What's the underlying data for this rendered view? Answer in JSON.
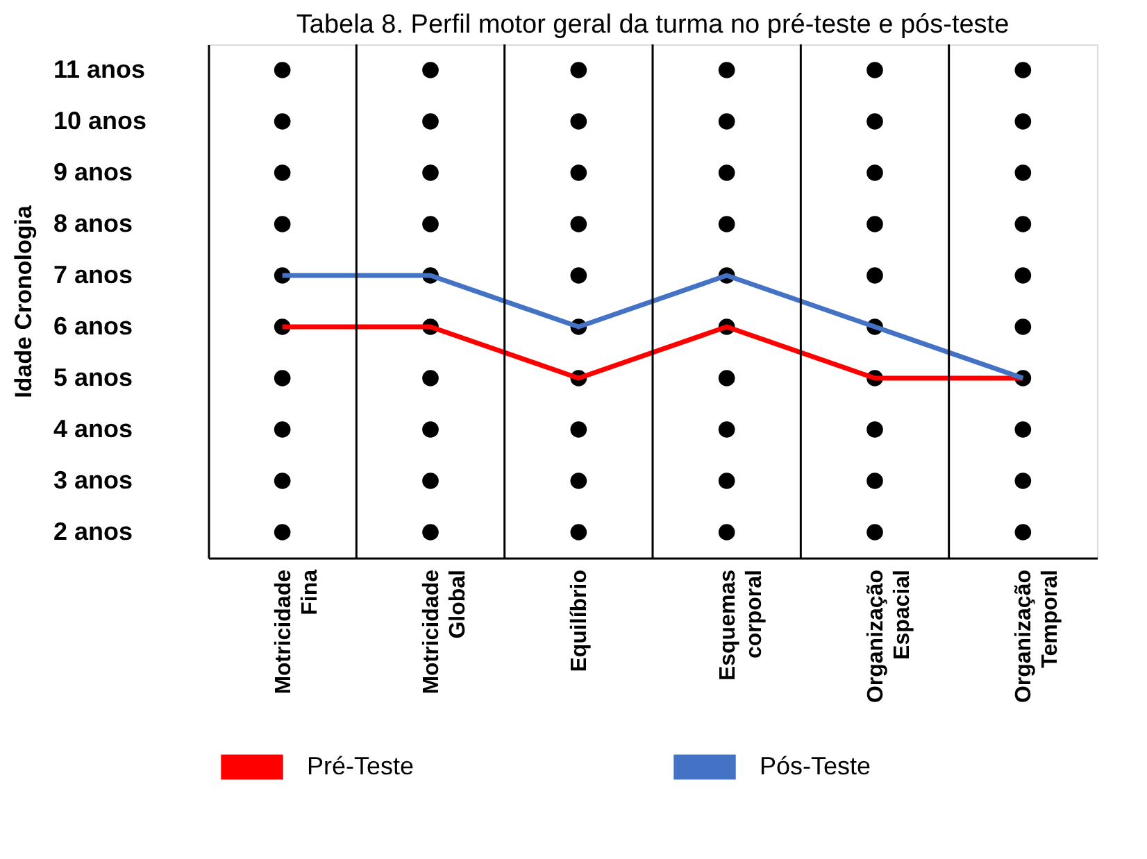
{
  "chart_data": {
    "type": "line",
    "title": "Tabela 8. Perfil motor geral da turma no pré-teste e pós-teste",
    "ylabel": "Idade Cronologia",
    "categories": [
      "Motricidade Fina",
      "Motricidade Global",
      "Equilíbrio",
      "Esquemas corporal",
      "Organização Espacial",
      "Organização Temporal"
    ],
    "series": [
      {
        "name": "Pré-Teste",
        "color": "#ff0000",
        "marker": "none",
        "values": [
          6,
          6,
          5,
          6,
          5,
          5
        ]
      },
      {
        "name": "Pós-Teste",
        "color": "#4472c4",
        "marker": "none",
        "values": [
          7,
          7,
          6,
          7,
          6,
          5
        ]
      },
      {
        "type": "scatter",
        "color": "#000000",
        "marker": "circle",
        "values": [
          2,
          2,
          2,
          2,
          2,
          2
        ]
      },
      {
        "type": "scatter",
        "color": "#000000",
        "marker": "circle",
        "values": [
          3,
          3,
          3,
          3,
          3,
          3
        ]
      },
      {
        "type": "scatter",
        "color": "#000000",
        "marker": "circle",
        "values": [
          4,
          4,
          4,
          4,
          4,
          4
        ]
      },
      {
        "type": "scatter",
        "color": "#000000",
        "marker": "circle",
        "values": [
          5,
          5,
          5,
          5,
          5,
          5
        ]
      },
      {
        "type": "scatter",
        "color": "#000000",
        "marker": "circle",
        "values": [
          6,
          6,
          6,
          6,
          6,
          6
        ]
      },
      {
        "type": "scatter",
        "color": "#000000",
        "marker": "circle",
        "values": [
          7,
          7,
          7,
          7,
          7,
          7
        ]
      },
      {
        "type": "scatter",
        "color": "#000000",
        "marker": "circle",
        "values": [
          8,
          8,
          8,
          8,
          8,
          8
        ]
      },
      {
        "type": "scatter",
        "color": "#000000",
        "marker": "circle",
        "values": [
          9,
          9,
          9,
          9,
          9,
          9
        ]
      },
      {
        "type": "scatter",
        "color": "#000000",
        "marker": "circle",
        "values": [
          10,
          10,
          10,
          10,
          10,
          10
        ]
      },
      {
        "type": "scatter",
        "color": "#000000",
        "marker": "circle",
        "values": [
          11,
          11,
          11,
          11,
          11,
          11
        ]
      }
    ],
    "ylim": [
      1.5,
      11.5
    ],
    "yticks": [
      {
        "value": 2,
        "label": "2 anos"
      },
      {
        "value": 3,
        "label": "3 anos"
      },
      {
        "value": 4,
        "label": "4 anos"
      },
      {
        "value": 5,
        "label": "5 anos"
      },
      {
        "value": 6,
        "label": "6 anos"
      },
      {
        "value": 7,
        "label": "7 anos"
      },
      {
        "value": 8,
        "label": "8 anos"
      },
      {
        "value": 9,
        "label": "9 anos"
      },
      {
        "value": 10,
        "label": "10 anos"
      },
      {
        "value": 11,
        "label": "11 anos"
      }
    ],
    "grid": "x",
    "legend": "bottom",
    "line_style": "solid"
  }
}
